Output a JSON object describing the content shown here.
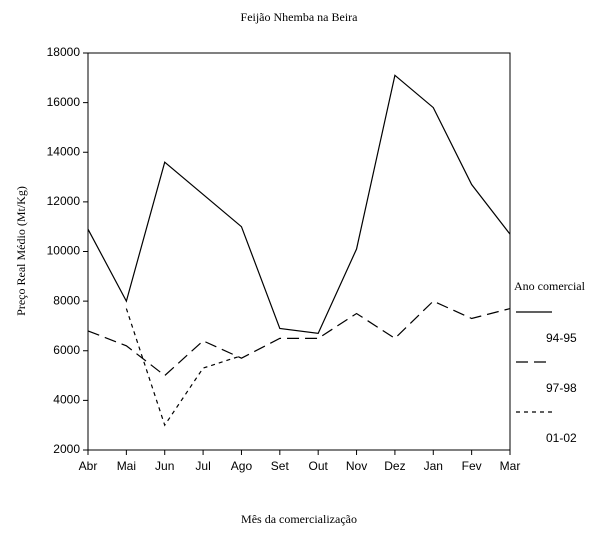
{
  "chart_data": {
    "type": "line",
    "title": "Feijão Nhemba na Beira",
    "x_label": "Mês da comercialização",
    "y_label": "Preço Real Médio (Mt/Kg)",
    "categories": [
      "Abr",
      "Mai",
      "Jun",
      "Jul",
      "Ago",
      "Set",
      "Out",
      "Nov",
      "Dez",
      "Jan",
      "Fev",
      "Mar"
    ],
    "series": [
      {
        "name": "94-95",
        "color": "#000000",
        "dash": "solid",
        "values": [
          10900,
          8000,
          13600,
          12300,
          11000,
          6900,
          6700,
          10100,
          17100,
          15800,
          12700,
          10700
        ]
      },
      {
        "name": "97-98",
        "color": "#000000",
        "dash": "long",
        "values": [
          6800,
          6200,
          5000,
          6400,
          5700,
          6500,
          6500,
          7500,
          6500,
          8000,
          7300,
          7700
        ]
      },
      {
        "name": "01-02",
        "color": "#000000",
        "dash": "short",
        "values": [
          null,
          7700,
          3000,
          5300,
          5800,
          null,
          null,
          null,
          null,
          null,
          null,
          null
        ]
      }
    ],
    "legend_title": "Ano comercial",
    "legend": "right",
    "ylim": [
      2000,
      18000
    ],
    "yticks": [
      2000,
      4000,
      6000,
      8000,
      10000,
      12000,
      14000,
      16000,
      18000
    ]
  }
}
